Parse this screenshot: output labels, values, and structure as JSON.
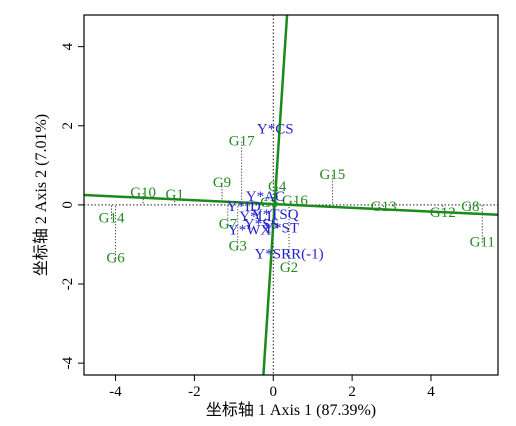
{
  "chart_data": {
    "type": "scatter",
    "xlabel": "坐标轴 1 Axis 1 (87.39%)",
    "ylabel": "坐标轴 2 Axis 2 (7.01%)",
    "xlim": [
      -4.8,
      5.7
    ],
    "ylim": [
      -4.3,
      4.8
    ],
    "xticks": [
      -4,
      -2,
      0,
      2,
      4
    ],
    "yticks": [
      -4,
      -2,
      0,
      2,
      4
    ],
    "colors": {
      "genotype": "#228B22",
      "trait": "#2222CC",
      "axis_line": "#1a8a1a",
      "frame": "#000000"
    },
    "genotypes": [
      {
        "label": "G1",
        "x": -2.5,
        "y": 0.25
      },
      {
        "label": "G2",
        "x": 0.4,
        "y": -1.6
      },
      {
        "label": "G3",
        "x": -0.9,
        "y": -1.05
      },
      {
        "label": "G4",
        "x": 0.1,
        "y": 0.45
      },
      {
        "label": "G5",
        "x": -0.1,
        "y": 0.05
      },
      {
        "label": "G6",
        "x": -4.0,
        "y": -1.35
      },
      {
        "label": "G7",
        "x": -1.15,
        "y": -0.5
      },
      {
        "label": "G8",
        "x": 5.0,
        "y": -0.05
      },
      {
        "label": "G9",
        "x": -1.3,
        "y": 0.55
      },
      {
        "label": "G10",
        "x": -3.3,
        "y": 0.3
      },
      {
        "label": "G11",
        "x": 5.3,
        "y": -0.95
      },
      {
        "label": "G12",
        "x": 4.3,
        "y": -0.2
      },
      {
        "label": "G13",
        "x": 2.8,
        "y": -0.05
      },
      {
        "label": "G14",
        "x": -4.1,
        "y": -0.35
      },
      {
        "label": "G15",
        "x": 1.5,
        "y": 0.75
      },
      {
        "label": "G16",
        "x": 0.55,
        "y": 0.1
      },
      {
        "label": "G17",
        "x": -0.8,
        "y": 1.6
      }
    ],
    "traits": [
      {
        "label": "Y*CS",
        "x": 0.05,
        "y": 1.9
      },
      {
        "label": "Y*AC",
        "x": -0.2,
        "y": 0.2
      },
      {
        "label": "Y*ID",
        "x": -0.75,
        "y": -0.05
      },
      {
        "label": "Y*LI",
        "x": -0.45,
        "y": -0.3
      },
      {
        "label": "Y*TSQ",
        "x": 0.05,
        "y": -0.25
      },
      {
        "label": "Y*ST",
        "x": 0.2,
        "y": -0.6
      },
      {
        "label": "Y*WX",
        "x": -0.6,
        "y": -0.65
      },
      {
        "label": "Y*SS",
        "x": -0.3,
        "y": -0.5
      },
      {
        "label": "Y*SRR(-1)",
        "x": 0.4,
        "y": -1.25
      }
    ],
    "axis_lines": [
      {
        "x1": -4.8,
        "y1": 0.25,
        "x2": 5.7,
        "y2": -0.25
      },
      {
        "x1": -0.25,
        "y1": -4.3,
        "x2": 0.35,
        "y2": 4.8
      }
    ]
  }
}
